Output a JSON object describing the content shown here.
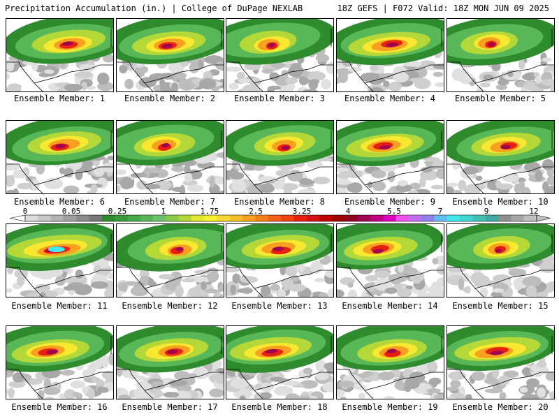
{
  "header": {
    "left": "Precipitation Accumulation (in.) | College of DuPage NEXLAB",
    "right": "18Z GEFS | F072 Valid: 18Z MON JUN 09 2025"
  },
  "members": [
    {
      "label": "Ensemble Member: 1",
      "intensity": 0.55
    },
    {
      "label": "Ensemble Member: 2",
      "intensity": 0.55
    },
    {
      "label": "Ensemble Member: 3",
      "intensity": 0.35
    },
    {
      "label": "Ensemble Member: 4",
      "intensity": 0.65
    },
    {
      "label": "Ensemble Member: 5",
      "intensity": 0.35
    },
    {
      "label": "Ensemble Member: 6",
      "intensity": 0.55
    },
    {
      "label": "Ensemble Member: 7",
      "intensity": 0.4
    },
    {
      "label": "Ensemble Member: 8",
      "intensity": 0.4
    },
    {
      "label": "Ensemble Member: 9",
      "intensity": 0.6
    },
    {
      "label": "Ensemble Member: 10",
      "intensity": 0.5
    },
    {
      "label": "Ensemble Member: 11",
      "intensity": 0.8
    },
    {
      "label": "Ensemble Member: 12",
      "intensity": 0.4
    },
    {
      "label": "Ensemble Member: 13",
      "intensity": 0.6
    },
    {
      "label": "Ensemble Member: 14",
      "intensity": 0.55
    },
    {
      "label": "Ensemble Member: 15",
      "intensity": 0.35
    },
    {
      "label": "Ensemble Member: 16",
      "intensity": 0.6
    },
    {
      "label": "Ensemble Member: 17",
      "intensity": 0.55
    },
    {
      "label": "Ensemble Member: 18",
      "intensity": 0.65
    },
    {
      "label": "Ensemble Member: 19",
      "intensity": 0.5
    },
    {
      "label": "Ensemble Member: 20",
      "intensity": 0.7
    }
  ],
  "colorbar": {
    "ticks": [
      "0",
      "0.05",
      "0.25",
      "1",
      "1.75",
      "2.5",
      "3.25",
      "4",
      "5.5",
      "7",
      "9",
      "12"
    ],
    "colors": [
      "#dcdcdc",
      "#c8c8c8",
      "#b4b4b4",
      "#a0a0a0",
      "#8c8c8c",
      "#787878",
      "#2e8b2e",
      "#3a9a3a",
      "#48aa48",
      "#58b858",
      "#6cc26c",
      "#8acc4a",
      "#b4d838",
      "#e0e830",
      "#f8f030",
      "#f8d830",
      "#f8c028",
      "#f8a020",
      "#f88018",
      "#f86018",
      "#f04010",
      "#e82010",
      "#d81010",
      "#c00000",
      "#a00000",
      "#900020",
      "#a00050",
      "#c00080",
      "#e000c0",
      "#f050f0",
      "#c070f0",
      "#9080f0",
      "#60c0f0",
      "#40e8f0",
      "#40d8d0",
      "#40c0b0",
      "#40a8a0",
      "#909090",
      "#a8a8a8",
      "#c0c0c0"
    ]
  }
}
